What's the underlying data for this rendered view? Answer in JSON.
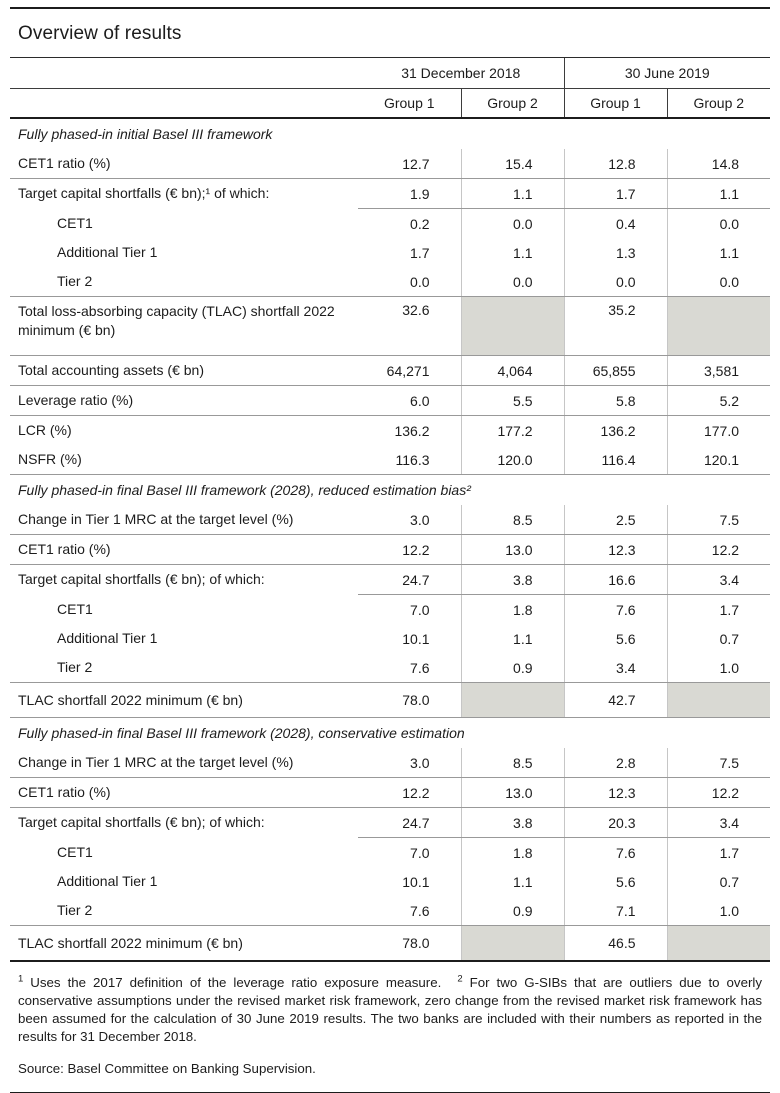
{
  "title": "Overview of results",
  "header": {
    "col_groups": [
      {
        "label": "31 December 2018",
        "span": 2
      },
      {
        "label": "30 June 2019",
        "span": 2
      }
    ],
    "sub_cols": [
      "Group 1",
      "Group 2",
      "Group 1",
      "Group 2"
    ]
  },
  "sections": [
    {
      "heading": "Fully phased-in initial Basel III framework",
      "rows": [
        {
          "label": "CET1 ratio (%)",
          "values": [
            "12.7",
            "15.4",
            "12.8",
            "14.8"
          ],
          "divider": "full"
        },
        {
          "label": "Target capital shortfalls (€ bn);¹ of which:",
          "values": [
            "1.9",
            "1.1",
            "1.7",
            "1.1"
          ],
          "divider": "values"
        },
        {
          "label": "CET1",
          "indent": true,
          "values": [
            "0.2",
            "0.0",
            "0.4",
            "0.0"
          ],
          "divider": "none"
        },
        {
          "label": "Additional Tier 1",
          "indent": true,
          "values": [
            "1.7",
            "1.1",
            "1.3",
            "1.1"
          ],
          "divider": "none"
        },
        {
          "label": "Tier 2",
          "indent": true,
          "values": [
            "0.0",
            "0.0",
            "0.0",
            "0.0"
          ],
          "divider": "full"
        },
        {
          "label": "Total loss-absorbing capacity (TLAC) shortfall 2022 minimum (€ bn)",
          "values": [
            "32.6",
            "",
            "35.2",
            ""
          ],
          "shaded": [
            false,
            true,
            false,
            true
          ],
          "size": "tall",
          "divider": "full"
        },
        {
          "label": "Total accounting assets (€ bn)",
          "values": [
            "64,271",
            "4,064",
            "65,855",
            "3,581"
          ],
          "divider": "full"
        },
        {
          "label": "Leverage ratio (%)",
          "values": [
            "6.0",
            "5.5",
            "5.8",
            "5.2"
          ],
          "divider": "full"
        },
        {
          "label": "LCR (%)",
          "values": [
            "136.2",
            "177.2",
            "136.2",
            "177.0"
          ],
          "divider": "none"
        },
        {
          "label": "NSFR (%)",
          "values": [
            "116.3",
            "120.0",
            "116.4",
            "120.1"
          ],
          "divider": "full"
        }
      ]
    },
    {
      "heading": "Fully phased-in final Basel III framework (2028), reduced estimation bias²",
      "rows": [
        {
          "label": "Change in Tier 1 MRC at the target level (%)",
          "values": [
            "3.0",
            "8.5",
            "2.5",
            "7.5"
          ],
          "divider": "full"
        },
        {
          "label": "CET1 ratio (%)",
          "values": [
            "12.2",
            "13.0",
            "12.3",
            "12.2"
          ],
          "divider": "full"
        },
        {
          "label": "Target capital shortfalls (€ bn); of which:",
          "values": [
            "24.7",
            "3.8",
            "16.6",
            "3.4"
          ],
          "divider": "values"
        },
        {
          "label": "CET1",
          "indent": true,
          "values": [
            "7.0",
            "1.8",
            "7.6",
            "1.7"
          ],
          "divider": "none"
        },
        {
          "label": "Additional Tier 1",
          "indent": true,
          "values": [
            "10.1",
            "1.1",
            "5.6",
            "0.7"
          ],
          "divider": "none"
        },
        {
          "label": "Tier 2",
          "indent": true,
          "values": [
            "7.6",
            "0.9",
            "3.4",
            "1.0"
          ],
          "divider": "full"
        },
        {
          "label": "TLAC shortfall 2022 minimum (€ bn)",
          "values": [
            "78.0",
            "",
            "42.7",
            ""
          ],
          "shaded": [
            false,
            true,
            false,
            true
          ],
          "size": "md",
          "divider": "full"
        }
      ]
    },
    {
      "heading": "Fully phased-in final Basel III framework (2028), conservative estimation",
      "rows": [
        {
          "label": "Change in Tier 1 MRC at the target level (%)",
          "values": [
            "3.0",
            "8.5",
            "2.8",
            "7.5"
          ],
          "divider": "full"
        },
        {
          "label": "CET1 ratio (%)",
          "values": [
            "12.2",
            "13.0",
            "12.3",
            "12.2"
          ],
          "divider": "full"
        },
        {
          "label": "Target capital shortfalls (€ bn); of which:",
          "values": [
            "24.7",
            "3.8",
            "20.3",
            "3.4"
          ],
          "divider": "values"
        },
        {
          "label": "CET1",
          "indent": true,
          "values": [
            "7.0",
            "1.8",
            "7.6",
            "1.7"
          ],
          "divider": "none"
        },
        {
          "label": "Additional Tier 1",
          "indent": true,
          "values": [
            "10.1",
            "1.1",
            "5.6",
            "0.7"
          ],
          "divider": "none"
        },
        {
          "label": "Tier 2",
          "indent": true,
          "values": [
            "7.6",
            "0.9",
            "7.1",
            "1.0"
          ],
          "divider": "full"
        },
        {
          "label": "TLAC shortfall 2022 minimum (€ bn)",
          "values": [
            "78.0",
            "",
            "46.5",
            ""
          ],
          "shaded": [
            false,
            true,
            false,
            true
          ],
          "size": "md",
          "divider": "none"
        }
      ]
    }
  ],
  "footnotes": [
    {
      "marker": "1",
      "text": "Uses the 2017 definition of the leverage ratio exposure measure."
    },
    {
      "marker": "2",
      "text": "For two G-SIBs that are outliers due to overly conservative assumptions under the revised market risk framework, zero change from the revised market risk framework has been assumed for the calculation of 30 June 2019 results. The two banks are included with their numbers as reported in the results for 31 December 2018."
    }
  ],
  "source": "Source: Basel Committee on Banking Supervision.",
  "colors": {
    "shaded_cell": "#d9d9d3",
    "rule_dark": "#1c1c1c",
    "rule_light": "#999999",
    "grid_vertical": "#c6c6c6"
  }
}
